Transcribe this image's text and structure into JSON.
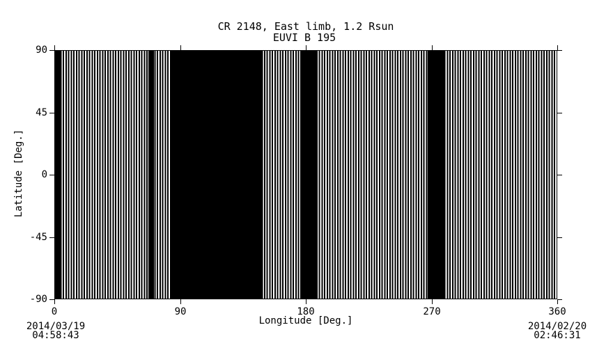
{
  "page": {
    "background_color": "#ffffff",
    "foreground_color": "#000000"
  },
  "chart_data": {
    "type": "heatmap",
    "title": "CR 2148, East limb, 1.2 Rsun",
    "subtitle": "EUVI B 195",
    "xlabel": "Longitude [Deg.]",
    "ylabel": "Latitude [Deg.]",
    "xlim": [
      0,
      360
    ],
    "ylim": [
      -90,
      90
    ],
    "xticks": [
      0,
      90,
      180,
      270,
      360
    ],
    "yticks": [
      90,
      45,
      0,
      -45,
      -90
    ],
    "grid": false,
    "legend": false,
    "annotations": {
      "bottom_left_date": "2014/03/19",
      "bottom_left_time": "04:58:43",
      "bottom_right_date": "2014/02/20",
      "bottom_right_time": "02:46:31"
    },
    "coverage": {
      "description": "Dense vertical black stripes spanning the full latitude range (-90 to 90 deg) mark longitudes with EUVI-B 195 image coverage; wider solid black bands mark continuous coverage intervals.",
      "stripe_period_deg": 1.9,
      "stripe_black_fraction": 0.55,
      "solid_black_bands_deg": [
        [
          0.0,
          4.0
        ],
        [
          66.8,
          70.8
        ],
        [
          82.8,
          149.1
        ],
        [
          176.0,
          188.0
        ],
        [
          267.7,
          280.2
        ]
      ]
    }
  }
}
